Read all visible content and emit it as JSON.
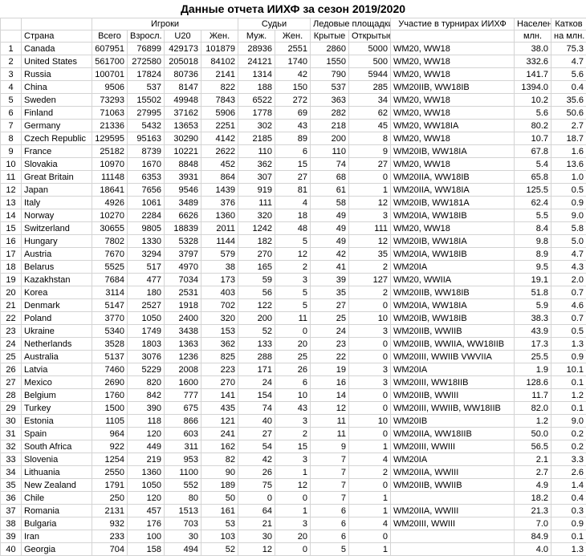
{
  "header": {
    "title": "Данные отчета ИИХФ за сезон 2019/2020"
  },
  "table": {
    "group_headers": [
      "Игроки",
      "Судьи",
      "Ледовые площадки",
      "Участие в турнирах ИИХФ",
      "Населен",
      "Катков"
    ],
    "columns": [
      "Страна",
      "Всего",
      "Взросл.",
      "U20",
      "Жен.",
      "Муж.",
      "Жен.",
      "Крытые",
      "Открытые",
      "млн.",
      "на млн."
    ],
    "rows": [
      [
        "1",
        "Canada",
        "607951",
        "76899",
        "429173",
        "101879",
        "28936",
        "2551",
        "2860",
        "5000",
        "WM20, WW18",
        "38.0",
        "75.3"
      ],
      [
        "2",
        "United States",
        "561700",
        "272580",
        "205018",
        "84102",
        "24121",
        "1740",
        "1550",
        "500",
        "WM20, WW18",
        "332.6",
        "4.7"
      ],
      [
        "3",
        "Russia",
        "100701",
        "17824",
        "80736",
        "2141",
        "1314",
        "42",
        "790",
        "5944",
        "WM20, WW18",
        "141.7",
        "5.6"
      ],
      [
        "4",
        "China",
        "9506",
        "537",
        "8147",
        "822",
        "188",
        "150",
        "537",
        "285",
        "WM20IIB, WW18IB",
        "1394.0",
        "0.4"
      ],
      [
        "5",
        "Sweden",
        "73293",
        "15502",
        "49948",
        "7843",
        "6522",
        "272",
        "363",
        "34",
        "WM20, WW18",
        "10.2",
        "35.6"
      ],
      [
        "6",
        "Finland",
        "71063",
        "27995",
        "37162",
        "5906",
        "1778",
        "69",
        "282",
        "62",
        "WM20, WW18",
        "5.6",
        "50.6"
      ],
      [
        "7",
        "Germany",
        "21336",
        "5432",
        "13653",
        "2251",
        "302",
        "43",
        "218",
        "45",
        "WM20, WW18IA",
        "80.2",
        "2.7"
      ],
      [
        "8",
        "Czech Republic",
        "129595",
        "95163",
        "30290",
        "4142",
        "2185",
        "89",
        "200",
        "8",
        "WM20, WW18",
        "10.7",
        "18.7"
      ],
      [
        "9",
        "France",
        "25182",
        "8739",
        "10221",
        "2622",
        "110",
        "6",
        "110",
        "9",
        "WM20IB, WW18IA",
        "67.8",
        "1.6"
      ],
      [
        "10",
        "Slovakia",
        "10970",
        "1670",
        "8848",
        "452",
        "362",
        "15",
        "74",
        "27",
        "WM20, WW18",
        "5.4",
        "13.6"
      ],
      [
        "11",
        "Great Britain",
        "11148",
        "6353",
        "3931",
        "864",
        "307",
        "27",
        "68",
        "0",
        "WM20IIA, WW18IB",
        "65.8",
        "1.0"
      ],
      [
        "12",
        "Japan",
        "18641",
        "7656",
        "9546",
        "1439",
        "919",
        "81",
        "61",
        "1",
        "WM20IIA, WW18IA",
        "125.5",
        "0.5"
      ],
      [
        "13",
        "Italy",
        "4926",
        "1061",
        "3489",
        "376",
        "111",
        "4",
        "58",
        "12",
        "WM20IB, WW181A",
        "62.4",
        "0.9"
      ],
      [
        "14",
        "Norway",
        "10270",
        "2284",
        "6626",
        "1360",
        "320",
        "18",
        "49",
        "3",
        "WM20IA, WW18IB",
        "5.5",
        "9.0"
      ],
      [
        "15",
        "Switzerland",
        "30655",
        "9805",
        "18839",
        "2011",
        "1242",
        "48",
        "49",
        "111",
        "WM20, WW18",
        "8.4",
        "5.8"
      ],
      [
        "16",
        "Hungary",
        "7802",
        "1330",
        "5328",
        "1144",
        "182",
        "5",
        "49",
        "12",
        "WM20IB, WW18IA",
        "9.8",
        "5.0"
      ],
      [
        "17",
        "Austria",
        "7670",
        "3294",
        "3797",
        "579",
        "270",
        "12",
        "42",
        "35",
        "WM20IA, WW18IB",
        "8.9",
        "4.7"
      ],
      [
        "18",
        "Belarus",
        "5525",
        "517",
        "4970",
        "38",
        "165",
        "2",
        "41",
        "2",
        "WM20IA",
        "9.5",
        "4.3"
      ],
      [
        "19",
        "Kazakhstan",
        "7684",
        "477",
        "7034",
        "173",
        "59",
        "3",
        "39",
        "127",
        "WM20, WWIIA",
        "19.1",
        "2.0"
      ],
      [
        "20",
        "Korea",
        "3114",
        "180",
        "2531",
        "403",
        "56",
        "5",
        "35",
        "2",
        "WM20IIB, WW18IB",
        "51.8",
        "0.7"
      ],
      [
        "21",
        "Denmark",
        "5147",
        "2527",
        "1918",
        "702",
        "122",
        "5",
        "27",
        "0",
        "WM20IA, WW18IA",
        "5.9",
        "4.6"
      ],
      [
        "22",
        "Poland",
        "3770",
        "1050",
        "2400",
        "320",
        "200",
        "11",
        "25",
        "10",
        "WM20IB, WW18IB",
        "38.3",
        "0.7"
      ],
      [
        "23",
        "Ukraine",
        "5340",
        "1749",
        "3438",
        "153",
        "52",
        "0",
        "24",
        "3",
        "WM20IIB, WWIIB",
        "43.9",
        "0.5"
      ],
      [
        "24",
        "Netherlands",
        "3528",
        "1803",
        "1363",
        "362",
        "133",
        "20",
        "23",
        "0",
        "WM20IIB, WWIIA, WW18IIB",
        "17.3",
        "1.3"
      ],
      [
        "25",
        "Australia",
        "5137",
        "3076",
        "1236",
        "825",
        "288",
        "25",
        "22",
        "0",
        "WM20III, WWIIB VWVIIA",
        "25.5",
        "0.9"
      ],
      [
        "26",
        "Latvia",
        "7460",
        "5229",
        "2008",
        "223",
        "171",
        "26",
        "19",
        "3",
        "WM20IA",
        "1.9",
        "10.1"
      ],
      [
        "27",
        "Mexico",
        "2690",
        "820",
        "1600",
        "270",
        "24",
        "6",
        "16",
        "3",
        "WM20III, WW18IIB",
        "128.6",
        "0.1"
      ],
      [
        "28",
        "Belgium",
        "1760",
        "842",
        "777",
        "141",
        "154",
        "10",
        "14",
        "0",
        "WM20IIB, WWIII",
        "11.7",
        "1.2"
      ],
      [
        "29",
        "Turkey",
        "1500",
        "390",
        "675",
        "435",
        "74",
        "43",
        "12",
        "0",
        "WM20III, WWIIB, WW18IIB",
        "82.0",
        "0.1"
      ],
      [
        "30",
        "Estonia",
        "1105",
        "118",
        "866",
        "121",
        "40",
        "3",
        "11",
        "10",
        "WM20IB",
        "1.2",
        "9.0"
      ],
      [
        "31",
        "Spain",
        "964",
        "120",
        "603",
        "241",
        "27",
        "2",
        "11",
        "0",
        "WM20IIA, WW18IIB",
        "50.0",
        "0.2"
      ],
      [
        "32",
        "South Africa",
        "922",
        "449",
        "311",
        "162",
        "54",
        "15",
        "9",
        "1",
        "WM20III, WWIII",
        "56.5",
        "0.2"
      ],
      [
        "33",
        "Slovenia",
        "1254",
        "219",
        "953",
        "82",
        "42",
        "3",
        "7",
        "4",
        "WM20IA",
        "2.1",
        "3.3"
      ],
      [
        "34",
        "Lithuania",
        "2550",
        "1360",
        "1100",
        "90",
        "26",
        "1",
        "7",
        "2",
        "WM20IIA, WWIII",
        "2.7",
        "2.6"
      ],
      [
        "35",
        "New Zealand",
        "1791",
        "1050",
        "552",
        "189",
        "75",
        "12",
        "7",
        "0",
        "WM20IIB, WWIIB",
        "4.9",
        "1.4"
      ],
      [
        "36",
        "Chile",
        "250",
        "120",
        "80",
        "50",
        "0",
        "0",
        "7",
        "1",
        null,
        "18.2",
        "0.4"
      ],
      [
        "37",
        "Romania",
        "2131",
        "457",
        "1513",
        "161",
        "64",
        "1",
        "6",
        "1",
        "WM20IIA, WWIII",
        "21.3",
        "0.3"
      ],
      [
        "38",
        "Bulgaria",
        "932",
        "176",
        "703",
        "53",
        "21",
        "3",
        "6",
        "4",
        "WM20III, WWIII",
        "7.0",
        "0.9"
      ],
      [
        "39",
        "Iran",
        "233",
        "100",
        "30",
        "103",
        "30",
        "20",
        "6",
        "0",
        null,
        "84.9",
        "0.1"
      ],
      [
        "40",
        "Georgia",
        "704",
        "158",
        "494",
        "52",
        "12",
        "0",
        "5",
        "1",
        null,
        "4.0",
        "1.3"
      ]
    ]
  }
}
